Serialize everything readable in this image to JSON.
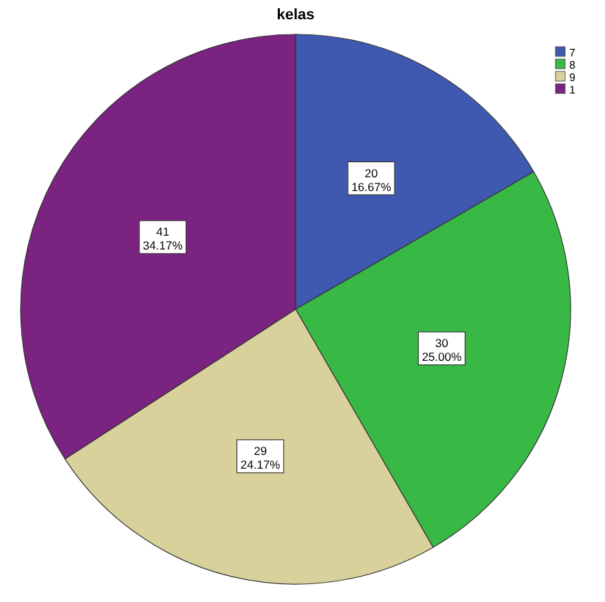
{
  "chart_data": {
    "type": "pie",
    "title": "kelas",
    "categories": [
      "7",
      "8",
      "9",
      "1"
    ],
    "values": [
      20,
      30,
      29,
      41
    ],
    "colors": [
      "#3f58b0",
      "#38b845",
      "#d9d19b",
      "#7a2380"
    ],
    "value_labels": [
      "20\n16.67%",
      "30\n25.00%",
      "29\n24.17%",
      "41\n34.17%"
    ],
    "legend": "top right"
  }
}
